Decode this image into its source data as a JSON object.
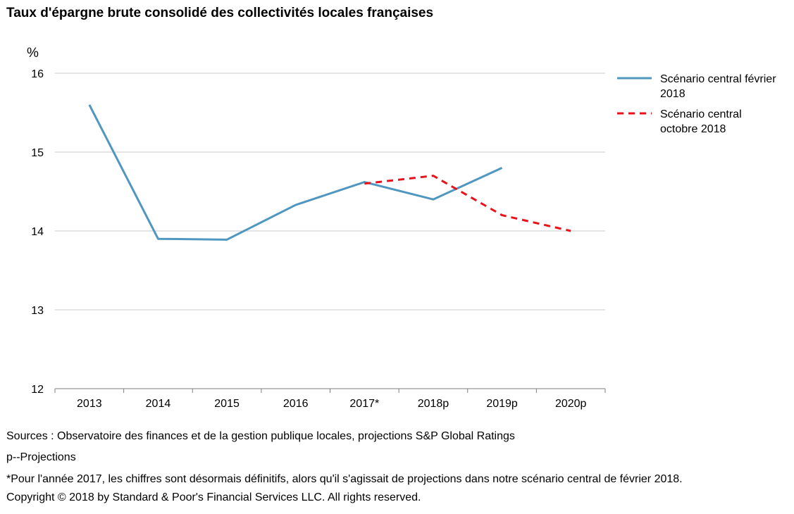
{
  "title": "Taux d'épargne brute consolidé des collectivités locales françaises",
  "chart_data": {
    "type": "line",
    "title": "Taux d'épargne brute consolidé des collectivités locales françaises",
    "ylabel": "%",
    "xlabel": "",
    "categories": [
      "2013",
      "2014",
      "2015",
      "2016",
      "2017*",
      "2018p",
      "2019p",
      "2020p"
    ],
    "ylim": [
      12,
      16
    ],
    "yticks": [
      "16",
      "15",
      "14",
      "13",
      "12"
    ],
    "grid": true,
    "legend_position": "right",
    "series": [
      {
        "name": "Scénario central février 2018",
        "color": "#4f97c0",
        "style": "solid",
        "values": [
          15.6,
          13.9,
          13.89,
          14.33,
          14.62,
          14.4,
          14.8,
          null
        ]
      },
      {
        "name": "Scénario central octobre 2018",
        "color": "#e8121c",
        "style": "dashed",
        "values": [
          null,
          null,
          null,
          null,
          14.6,
          14.7,
          14.2,
          14.0
        ]
      }
    ]
  },
  "legend": [
    {
      "line1": "Scénario central février",
      "line2": "2018"
    },
    {
      "line1": "Scénario central",
      "line2": "octobre 2018"
    }
  ],
  "footnotes": {
    "sources": "Sources : Observatoire des finances et de la gestion publique locales, projections S&P Global Ratings",
    "projections": "p--Projections",
    "note": "*Pour l'année 2017, les chiffres sont désormais définitifs, alors qu'il s'agissait de projections dans notre scénario central de février 2018.",
    "copyright": "Copyright © 2018 by Standard & Poor's Financial Services LLC. All rights reserved."
  }
}
